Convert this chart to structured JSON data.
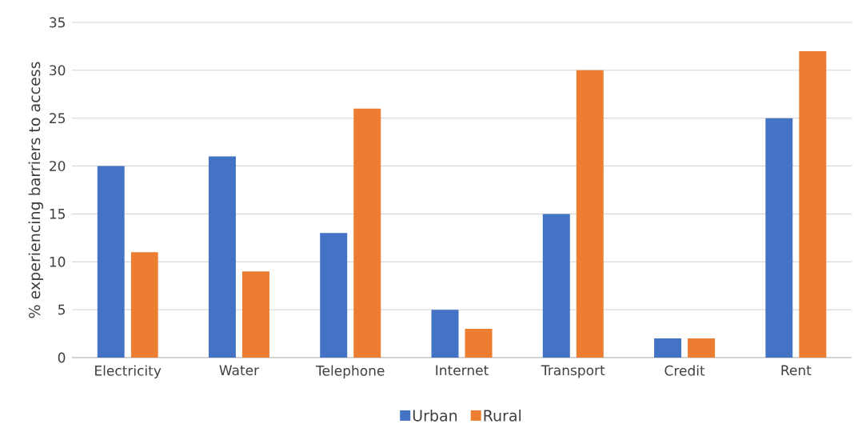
{
  "chart_data": {
    "type": "bar",
    "ylabel": "% experiencing barriers to access",
    "categories": [
      "Electricity",
      "Water",
      "Telephone",
      "Internet",
      "Transport",
      "Credit",
      "Rent"
    ],
    "series": [
      {
        "name": "Urban",
        "color": "#4472c4",
        "values": [
          20,
          21,
          13,
          5,
          15,
          2,
          25
        ]
      },
      {
        "name": "Rural",
        "color": "#ed7d31",
        "values": [
          11,
          9,
          26,
          3,
          30,
          2,
          32
        ]
      }
    ],
    "ylim": [
      0,
      35
    ],
    "yticks": [
      0,
      5,
      10,
      15,
      20,
      25,
      30,
      35
    ],
    "grid": "y",
    "legend": "bottom"
  }
}
